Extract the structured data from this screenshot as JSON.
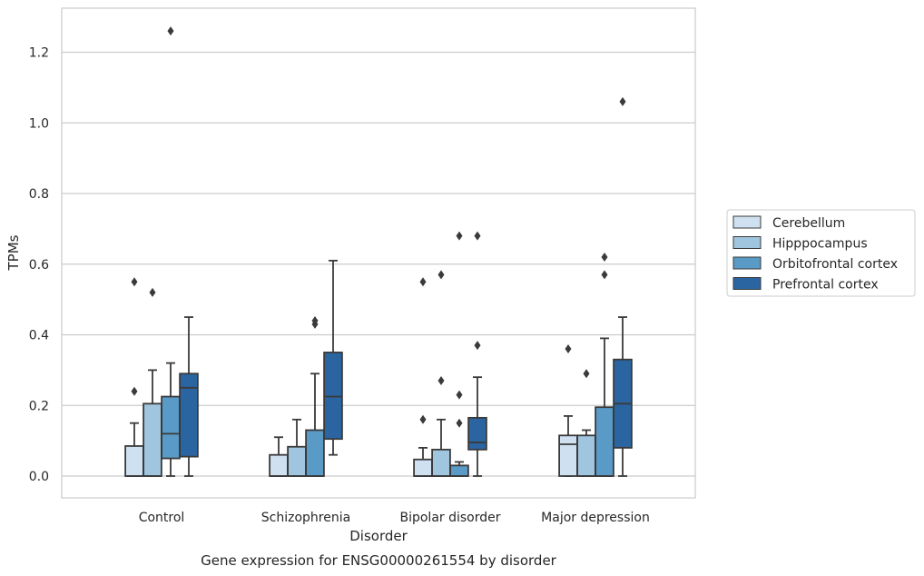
{
  "chart_data": {
    "type": "box",
    "title": "",
    "caption": "Gene expression for ENSG00000261554 by disorder",
    "xlabel": "Disorder",
    "ylabel": "TPMs",
    "ylim": [
      -0.06,
      1.32
    ],
    "yticks": [
      0.0,
      0.2,
      0.4,
      0.6,
      0.8,
      1.0,
      1.2
    ],
    "grid": "horizontal",
    "legend_placement": "right",
    "categories": [
      "Control",
      "Schizophrenia",
      "Bipolar disorder",
      "Major depression"
    ],
    "series": [
      {
        "name": "Cerebellum",
        "color": "#cfe0f0",
        "boxes": [
          {
            "whislo": 0.0,
            "q1": 0.0,
            "med": 0.0,
            "q3": 0.085,
            "whishi": 0.15,
            "fliers": [
              0.24,
              0.55
            ]
          },
          {
            "whislo": 0.0,
            "q1": 0.0,
            "med": 0.0,
            "q3": 0.06,
            "whishi": 0.11,
            "fliers": []
          },
          {
            "whislo": 0.0,
            "q1": 0.0,
            "med": 0.0,
            "q3": 0.047,
            "whishi": 0.08,
            "fliers": [
              0.16,
              0.55
            ]
          },
          {
            "whislo": 0.0,
            "q1": 0.0,
            "med": 0.09,
            "q3": 0.115,
            "whishi": 0.17,
            "fliers": [
              0.36
            ]
          }
        ]
      },
      {
        "name": "Hipppocampus",
        "color": "#9fc6de",
        "boxes": [
          {
            "whislo": 0.0,
            "q1": 0.0,
            "med": 0.0,
            "q3": 0.205,
            "whishi": 0.3,
            "fliers": [
              0.52
            ]
          },
          {
            "whislo": 0.0,
            "q1": 0.0,
            "med": 0.0,
            "q3": 0.083,
            "whishi": 0.16,
            "fliers": []
          },
          {
            "whislo": 0.0,
            "q1": 0.0,
            "med": 0.0,
            "q3": 0.075,
            "whishi": 0.16,
            "fliers": [
              0.27,
              0.57
            ]
          },
          {
            "whislo": 0.0,
            "q1": 0.0,
            "med": 0.0,
            "q3": 0.115,
            "whishi": 0.13,
            "fliers": [
              0.29
            ]
          }
        ]
      },
      {
        "name": "Orbitofrontal cortex",
        "color": "#5a9ac7",
        "boxes": [
          {
            "whislo": 0.0,
            "q1": 0.05,
            "med": 0.12,
            "q3": 0.225,
            "whishi": 0.32,
            "fliers": [
              1.26
            ]
          },
          {
            "whislo": 0.0,
            "q1": 0.0,
            "med": 0.0,
            "q3": 0.13,
            "whishi": 0.29,
            "fliers": [
              0.43,
              0.44
            ]
          },
          {
            "whislo": 0.0,
            "q1": 0.0,
            "med": 0.0,
            "q3": 0.03,
            "whishi": 0.04,
            "fliers": [
              0.15,
              0.23,
              0.68
            ]
          },
          {
            "whislo": 0.0,
            "q1": 0.0,
            "med": 0.0,
            "q3": 0.195,
            "whishi": 0.39,
            "fliers": [
              0.57,
              0.62
            ]
          }
        ]
      },
      {
        "name": "Prefrontal cortex",
        "color": "#2a65a2",
        "boxes": [
          {
            "whislo": 0.0,
            "q1": 0.055,
            "med": 0.25,
            "q3": 0.29,
            "whishi": 0.45,
            "fliers": []
          },
          {
            "whislo": 0.06,
            "q1": 0.105,
            "med": 0.225,
            "q3": 0.35,
            "whishi": 0.61,
            "fliers": []
          },
          {
            "whislo": 0.0,
            "q1": 0.075,
            "med": 0.095,
            "q3": 0.165,
            "whishi": 0.28,
            "fliers": [
              0.37,
              0.68
            ]
          },
          {
            "whislo": 0.0,
            "q1": 0.08,
            "med": 0.205,
            "q3": 0.33,
            "whishi": 0.45,
            "fliers": [
              1.06
            ]
          }
        ]
      }
    ]
  }
}
